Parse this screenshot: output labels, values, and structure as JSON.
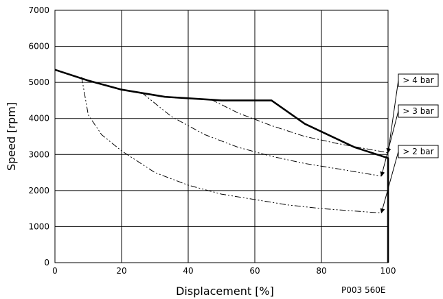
{
  "chart_data": {
    "type": "line",
    "xlabel": "Displacement [%]",
    "ylabel": "Speed [rpm]",
    "xlim": [
      0,
      100
    ],
    "ylim": [
      0,
      7000
    ],
    "x_ticks": [
      0,
      20,
      40,
      60,
      80,
      100
    ],
    "y_ticks": [
      0,
      1000,
      2000,
      3000,
      4000,
      5000,
      6000,
      7000
    ],
    "grid": true,
    "figure_code": "P003 560E",
    "series": [
      {
        "style": "solid-bold",
        "points": [
          [
            0,
            5350
          ],
          [
            10,
            5050
          ],
          [
            20,
            4800
          ],
          [
            33,
            4600
          ],
          [
            47,
            4520
          ],
          [
            50,
            4500
          ],
          [
            65,
            4500
          ],
          [
            75,
            3850
          ],
          [
            90,
            3200
          ],
          [
            100,
            2900
          ],
          [
            100,
            0
          ]
        ]
      },
      {
        "name": "> 4 bar",
        "style": "dash-dot",
        "points": [
          [
            47,
            4520
          ],
          [
            55,
            4150
          ],
          [
            65,
            3800
          ],
          [
            75,
            3500
          ],
          [
            85,
            3300
          ],
          [
            100,
            3050
          ]
        ]
      },
      {
        "name": "> 3 bar",
        "style": "dash-dot-dot",
        "points": [
          [
            26,
            4720
          ],
          [
            35,
            4050
          ],
          [
            45,
            3550
          ],
          [
            55,
            3200
          ],
          [
            65,
            2950
          ],
          [
            75,
            2750
          ],
          [
            85,
            2600
          ],
          [
            98,
            2400
          ]
        ]
      },
      {
        "name": "> 2 bar",
        "style": "dash-dot-dot",
        "points": [
          [
            8,
            5150
          ],
          [
            10,
            4100
          ],
          [
            14,
            3550
          ],
          [
            20,
            3100
          ],
          [
            30,
            2500
          ],
          [
            40,
            2150
          ],
          [
            50,
            1900
          ],
          [
            60,
            1750
          ],
          [
            70,
            1600
          ],
          [
            80,
            1500
          ],
          [
            90,
            1430
          ],
          [
            98,
            1380
          ]
        ]
      }
    ],
    "callouts": [
      {
        "label": "> 4 bar",
        "points_to": [
          100,
          3050
        ]
      },
      {
        "label": "> 3 bar",
        "points_to": [
          98,
          2400
        ]
      },
      {
        "label": "> 2 bar",
        "points_to": [
          98,
          1380
        ]
      }
    ]
  }
}
